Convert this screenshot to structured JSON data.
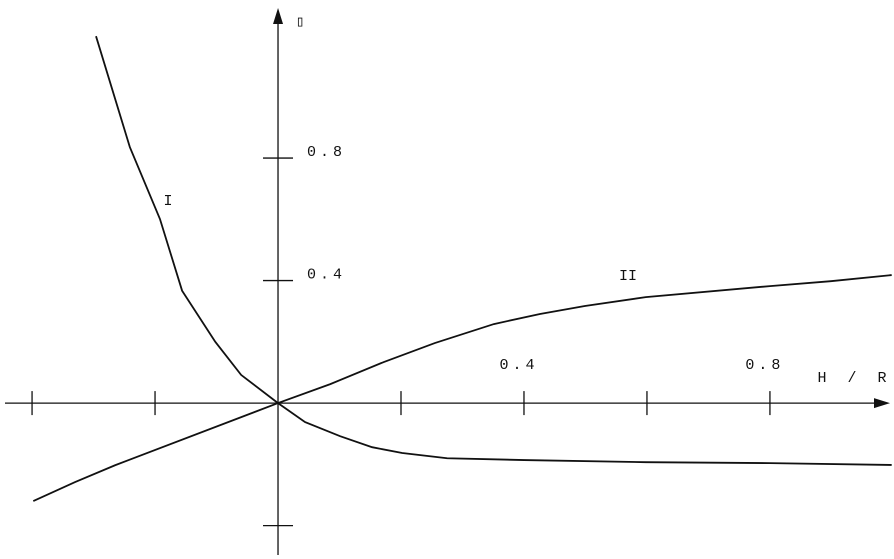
{
  "chart_data": {
    "type": "line",
    "xlabel": "H / R",
    "ylabel": "▯",
    "xlim": [
      -0.444,
      0.992
    ],
    "ylim": [
      -0.496,
      1.29
    ],
    "xticks": [
      0.4,
      0.8
    ],
    "xminorticks": [
      -0.4,
      -0.2,
      0.2,
      0.6
    ],
    "yticks": [
      0.4,
      0.8
    ],
    "yminorticks": [
      -0.4
    ],
    "series": [
      {
        "name": "I",
        "color": "#111111",
        "x": [
          -0.296,
          -0.241,
          -0.192,
          -0.156,
          -0.102,
          -0.06,
          0,
          0.044,
          0.101,
          0.153,
          0.202,
          0.275,
          0.4,
          0.598,
          0.8,
          0.998
        ],
        "values": [
          1.198,
          0.836,
          0.601,
          0.367,
          0.2,
          0.092,
          0,
          -0.062,
          -0.108,
          -0.144,
          -0.163,
          -0.18,
          -0.186,
          -0.193,
          -0.196,
          -0.202
        ]
      },
      {
        "name": "II",
        "color": "#111111",
        "x": [
          -0.398,
          -0.33,
          -0.265,
          0,
          0.085,
          0.172,
          0.255,
          0.351,
          0.426,
          0.499,
          0.598,
          0.8,
          0.899,
          0.998
        ],
        "values": [
          -0.32,
          -0.258,
          -0.203,
          0,
          0.062,
          0.134,
          0.196,
          0.258,
          0.291,
          0.317,
          0.346,
          0.382,
          0.398,
          0.418
        ]
      }
    ]
  }
}
